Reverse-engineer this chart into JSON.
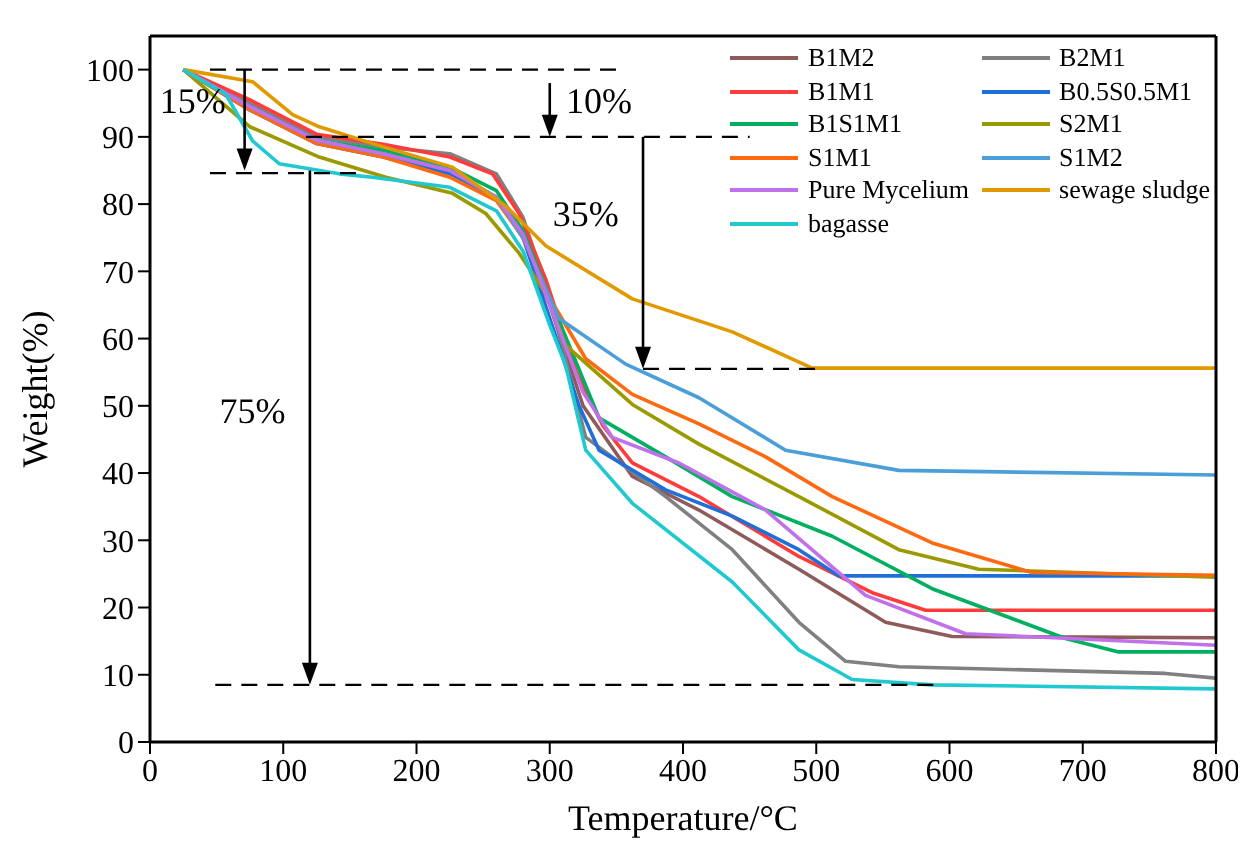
{
  "chart_data": {
    "type": "line",
    "xlabel": "Temperature/°C",
    "ylabel": "Weight(%)",
    "xlim": [
      0,
      800
    ],
    "xticks": [
      0,
      100,
      200,
      300,
      400,
      500,
      600,
      700,
      800
    ],
    "ylim": [
      0,
      105
    ],
    "yticks": [
      0,
      10,
      20,
      30,
      40,
      50,
      60,
      70,
      80,
      90,
      100
    ],
    "legend": "top right",
    "marker": "none",
    "line_style": "solid",
    "annotations": [
      "15%",
      "10%",
      "35%",
      "75%"
    ],
    "series": [
      {
        "name": "B1M2",
        "color": "#8f5a5a",
        "x": [
          25,
          75,
          125,
          175,
          225,
          260,
          280,
          300,
          325,
          362,
          412,
          487,
          552,
          602,
          700,
          800
        ],
        "values": [
          100,
          94,
          89.5,
          87.5,
          85,
          81,
          75,
          65,
          50,
          39.5,
          34.5,
          25.7,
          17.8,
          15.7,
          15.6,
          15.5
        ]
      },
      {
        "name": "B2M1",
        "color": "#808080",
        "x": [
          25,
          75,
          125,
          175,
          225,
          260,
          280,
          300,
          327,
          387,
          437,
          487,
          522,
          562,
          762,
          800
        ],
        "values": [
          100,
          95,
          90,
          88.5,
          87.5,
          84.5,
          78,
          66,
          45.3,
          36.5,
          28.6,
          17.8,
          12,
          11.2,
          10.2,
          9.5
        ]
      },
      {
        "name": "B1M1",
        "color": "#ff3b3b",
        "x": [
          25,
          75,
          125,
          175,
          225,
          257,
          277,
          297,
          320,
          340,
          362,
          412,
          487,
          542,
          582,
          800
        ],
        "values": [
          100,
          95.5,
          90.4,
          88.9,
          87,
          84.5,
          78.6,
          68.8,
          55,
          47,
          41.5,
          36.5,
          27.6,
          22.2,
          19.6,
          19.6
        ]
      },
      {
        "name": "B0.5S0.5M1",
        "color": "#1f6fd9",
        "x": [
          25,
          75,
          125,
          175,
          225,
          260,
          280,
          300,
          322,
          337,
          387,
          437,
          487,
          517,
          800
        ],
        "values": [
          100,
          94,
          89,
          87,
          84.5,
          81,
          75,
          63,
          50,
          43.4,
          37.5,
          33.6,
          28.6,
          24.7,
          24.7
        ]
      },
      {
        "name": "B1S1M1",
        "color": "#00b060",
        "x": [
          25,
          75,
          125,
          175,
          225,
          260,
          280,
          300,
          337,
          387,
          437,
          512,
          587,
          687,
          727,
          800
        ],
        "values": [
          100,
          94.5,
          89.5,
          88,
          85.5,
          82,
          76,
          66,
          48.2,
          42.4,
          36.5,
          30.6,
          22.8,
          15.4,
          13.4,
          13.4
        ]
      },
      {
        "name": "S2M1",
        "color": "#9a9a00",
        "x": [
          25,
          75,
          127,
          177,
          227,
          252,
          277,
          297,
          312,
          362,
          412,
          487,
          562,
          622,
          800
        ],
        "values": [
          100,
          91.5,
          87,
          84,
          81.6,
          78.6,
          72.7,
          66.7,
          59,
          50.2,
          44.3,
          36.5,
          28.6,
          25.7,
          24.5
        ]
      },
      {
        "name": "S1M1",
        "color": "#ff6a10",
        "x": [
          25,
          75,
          125,
          175,
          225,
          260,
          280,
          300,
          327,
          362,
          412,
          462,
          512,
          587,
          662,
          800
        ],
        "values": [
          100,
          94,
          89,
          87,
          84,
          80.5,
          75,
          66,
          57,
          51.7,
          47.3,
          42.4,
          36.5,
          29.6,
          25.2,
          24.8
        ]
      },
      {
        "name": "S1M2",
        "color": "#4a9fd8",
        "x": [
          25,
          75,
          125,
          175,
          225,
          260,
          280,
          307,
          357,
          412,
          477,
          562,
          800
        ],
        "values": [
          100,
          94.5,
          89.5,
          87.5,
          85,
          81,
          75,
          63,
          56.2,
          51.2,
          43.4,
          40.4,
          39.7
        ]
      },
      {
        "name": "Pure Mycelium",
        "color": "#c070e8",
        "x": [
          25,
          75,
          125,
          175,
          225,
          260,
          280,
          300,
          325,
          347,
          397,
          462,
          537,
          612,
          800
        ],
        "values": [
          100,
          94.5,
          89.5,
          87.5,
          85,
          81,
          75.5,
          65,
          52,
          45.3,
          41.5,
          34.5,
          21.8,
          16.1,
          14.4
        ]
      },
      {
        "name": "sewage sludge",
        "color": "#e09a00",
        "x": [
          25,
          77,
          107,
          127,
          177,
          227,
          267,
          297,
          362,
          437,
          497,
          800
        ],
        "values": [
          100,
          98.2,
          93.3,
          91.5,
          88.4,
          85.5,
          79.7,
          73.8,
          65.9,
          61,
          55.6,
          55.6
        ]
      },
      {
        "name": "bagasse",
        "color": "#20c8d0",
        "x": [
          25,
          57,
          77,
          97,
          142,
          167,
          225,
          260,
          280,
          300,
          312,
          327,
          362,
          437,
          487,
          527,
          587,
          800
        ],
        "values": [
          100,
          96.3,
          89.4,
          86,
          84.5,
          84,
          82.5,
          79,
          73,
          62,
          56,
          43.4,
          35.5,
          23.8,
          13.7,
          9.3,
          8.5,
          7.9
        ]
      },
      {
        "color": "#000000",
        "line_style": "dashed",
        "x": [
          45,
          352
        ],
        "values": [
          100,
          100
        ]
      },
      {
        "color": "#000000",
        "line_style": "dashed",
        "x": [
          117,
          450
        ],
        "values": [
          90,
          90
        ]
      },
      {
        "color": "#000000",
        "line_style": "dashed",
        "x": [
          45,
          157
        ],
        "values": [
          84.6,
          84.6
        ]
      },
      {
        "color": "#000000",
        "line_style": "dashed",
        "x": [
          370,
          500
        ],
        "values": [
          55.5,
          55.5
        ]
      },
      {
        "color": "#000000",
        "line_style": "dashed",
        "x": [
          49,
          590
        ],
        "values": [
          8.5,
          8.5
        ]
      }
    ]
  }
}
